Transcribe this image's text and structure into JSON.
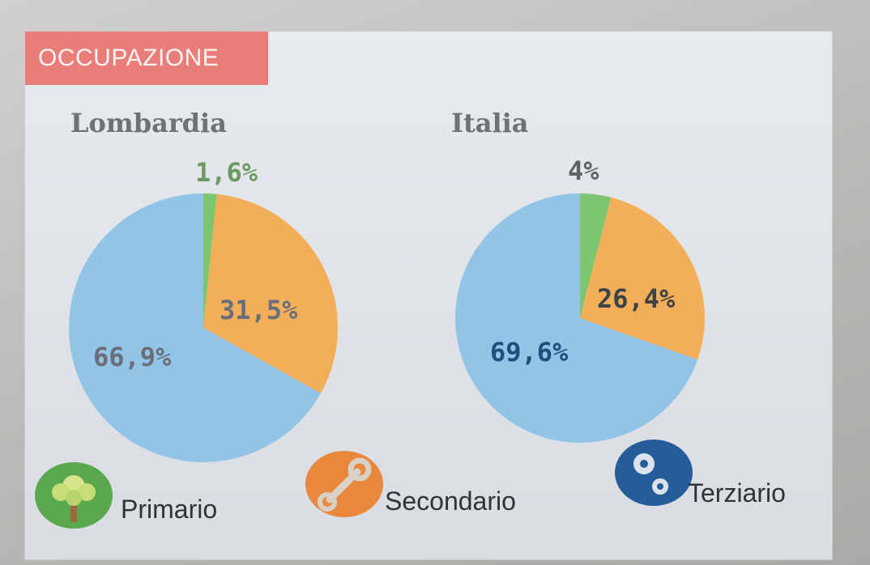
{
  "header": {
    "title": "OCCUPAZIONE"
  },
  "colors": {
    "primario": "#7dc66f",
    "secondario": "#f3ae5a",
    "terziario": "#92c4e8",
    "header_bg": "#e97d79"
  },
  "chart_data": [
    {
      "type": "pie",
      "title": "Lombardia",
      "categories": [
        "Primario",
        "Secondario",
        "Terziario"
      ],
      "values": [
        1.6,
        31.5,
        66.9
      ],
      "labels": [
        "1,6%",
        "31,5%",
        "66,9%"
      ]
    },
    {
      "type": "pie",
      "title": "Italia",
      "categories": [
        "Primario",
        "Secondario",
        "Terziario"
      ],
      "values": [
        4.0,
        26.4,
        69.6
      ],
      "labels": [
        "4%",
        "26,4%",
        "69,6%"
      ]
    }
  ],
  "legend": [
    {
      "label": "Primario",
      "icon": "tree-icon"
    },
    {
      "label": "Secondario",
      "icon": "wrench-icon"
    },
    {
      "label": "Terziario",
      "icon": "gears-icon"
    }
  ]
}
